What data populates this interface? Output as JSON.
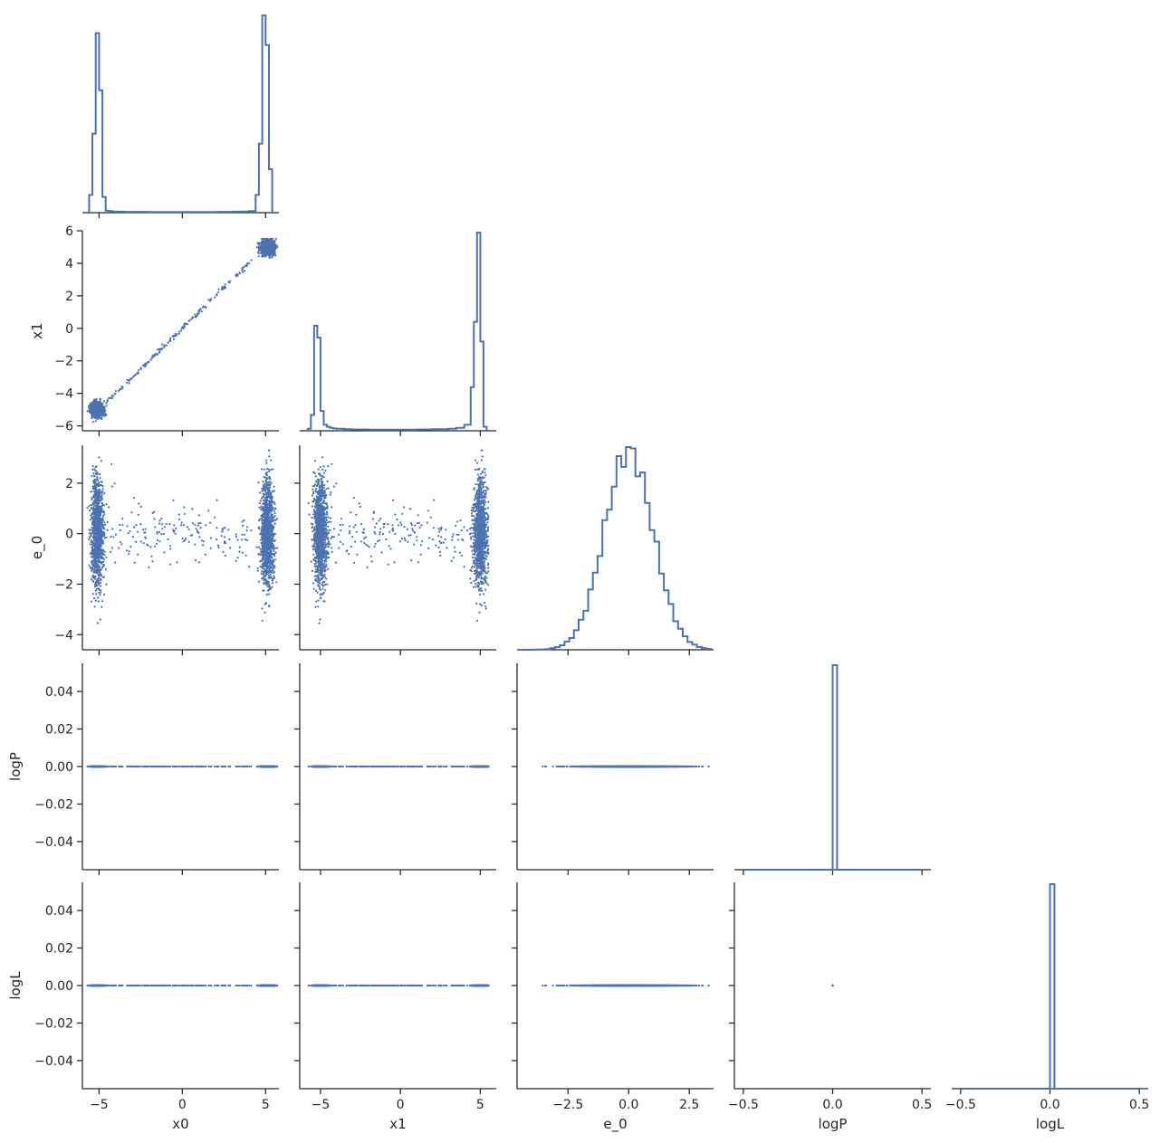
{
  "chart_data": {
    "type": "scatter",
    "title": "",
    "layout": "corner",
    "variables": [
      "x0",
      "x1",
      "e_0",
      "logP",
      "logL"
    ],
    "colors": {
      "series": "#4c72b0",
      "axis": "#262626"
    },
    "axes": {
      "x0": {
        "label": "x0",
        "range": [
          -6.0,
          5.8
        ],
        "ticks": [
          -5,
          0,
          5
        ],
        "tick_labels": [
          "−5",
          "0",
          "5"
        ]
      },
      "x1": {
        "label": "x1",
        "range": [
          -6.3,
          6.0
        ],
        "ticks": [
          -6,
          -4,
          -2,
          0,
          2,
          4,
          6
        ],
        "tick_labels": [
          "−6",
          "−4",
          "−2",
          "0",
          "2",
          "4",
          "6"
        ],
        "x_ticks": [
          -5,
          0,
          5
        ],
        "x_tick_labels": [
          "−5",
          "0",
          "5"
        ]
      },
      "e_0": {
        "label": "e_0",
        "range": [
          -4.6,
          3.5
        ],
        "ticks": [
          -4,
          -2,
          0,
          2
        ],
        "tick_labels": [
          "−4",
          "−2",
          "0",
          "2"
        ],
        "x_ticks": [
          -2.5,
          0,
          2.5
        ],
        "x_tick_labels": [
          "−2.5",
          "0.0",
          "2.5"
        ]
      },
      "logP": {
        "label": "logP",
        "range": [
          -0.055,
          0.055
        ],
        "ticks": [
          -0.04,
          -0.02,
          0,
          0.02,
          0.04
        ],
        "tick_labels": [
          "−0.04",
          "−0.02",
          "0.00",
          "0.02",
          "0.04"
        ],
        "x_range": [
          -0.55,
          0.55
        ],
        "x_ticks": [
          -0.5,
          0,
          0.5
        ],
        "x_tick_labels": [
          "−0.5",
          "0.0",
          "0.5"
        ]
      },
      "logL": {
        "label": "logL",
        "range": [
          -0.055,
          0.055
        ],
        "ticks": [
          -0.04,
          -0.02,
          0,
          0.02,
          0.04
        ],
        "tick_labels": [
          "−0.04",
          "−0.02",
          "0.00",
          "0.02",
          "0.04"
        ],
        "x_range": [
          -0.55,
          0.55
        ],
        "x_ticks": [
          -0.5,
          0,
          0.5
        ],
        "x_tick_labels": [
          "−0.5",
          "0.0",
          "0.5"
        ]
      }
    },
    "histograms": {
      "x0": {
        "edges": [
          -5.6,
          -5.4,
          -5.2,
          -5.0,
          -4.8,
          -4.6,
          -4.4,
          -4.2,
          -4.0,
          -3.5,
          -3.0,
          -2.0,
          -1.0,
          0.0,
          1.0,
          2.0,
          3.0,
          3.5,
          4.0,
          4.4,
          4.6,
          4.8,
          5.0,
          5.2,
          5.4,
          5.6
        ],
        "counts": [
          0.09,
          0.4,
          0.91,
          0.62,
          0.08,
          0.01,
          0.008,
          0.006,
          0.005,
          0.004,
          0.004,
          0.003,
          0.003,
          0.003,
          0.003,
          0.004,
          0.005,
          0.006,
          0.008,
          0.09,
          0.35,
          1.0,
          0.85,
          0.22,
          0.0
        ]
      },
      "x1": {
        "edges": [
          -5.8,
          -5.6,
          -5.4,
          -5.2,
          -5.0,
          -4.8,
          -4.6,
          -4.4,
          -4.2,
          -4.0,
          -3.5,
          -3.0,
          -2.0,
          -1.0,
          0.0,
          1.0,
          2.0,
          3.0,
          3.5,
          4.0,
          4.4,
          4.6,
          4.8,
          5.0,
          5.2,
          5.4,
          5.6
        ],
        "counts": [
          0.01,
          0.08,
          0.53,
          0.47,
          0.1,
          0.03,
          0.02,
          0.015,
          0.012,
          0.01,
          0.008,
          0.007,
          0.006,
          0.006,
          0.006,
          0.007,
          0.008,
          0.01,
          0.015,
          0.03,
          0.22,
          0.55,
          1.0,
          0.45,
          0.02,
          0.0
        ]
      },
      "e_0": {
        "mean": 0.0,
        "sd": 1.0,
        "bins": [
          -4.4,
          3.4
        ]
      },
      "logP": {
        "edges": [
          -0.5,
          0.0,
          0.025,
          0.5
        ],
        "counts": [
          0.0,
          1.0,
          0.0
        ]
      },
      "logL": {
        "edges": [
          -0.5,
          0.0,
          0.025,
          0.5
        ],
        "counts": [
          0.0,
          1.0,
          0.0
        ]
      }
    },
    "scatter_seed": 42
  }
}
